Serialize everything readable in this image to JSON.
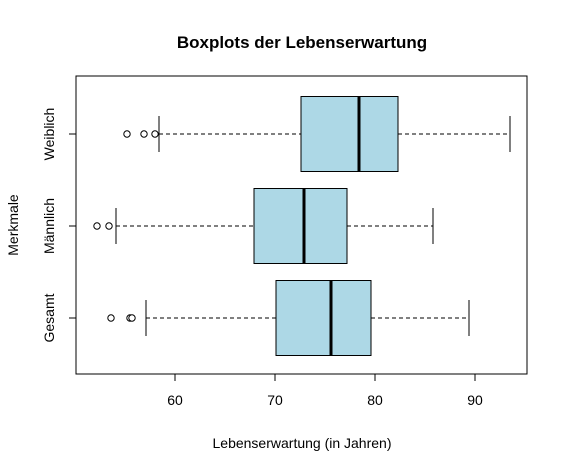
{
  "chart_data": {
    "type": "boxplot",
    "orientation": "horizontal",
    "title": "Boxplots der Lebenserwartung",
    "xlabel": "Lebenserwartung (in Jahren)",
    "ylabel": "Merkmale",
    "xlim": [
      50,
      95
    ],
    "xticks": [
      60,
      70,
      80,
      90
    ],
    "box_color": "#add8e6",
    "grid": false,
    "groups": [
      {
        "label": "Gesamt",
        "whisker_low": 57.1,
        "q1": 70.1,
        "median": 75.6,
        "q3": 79.6,
        "whisker_high": 89.4,
        "outliers": [
          53.6,
          55.5,
          55.7
        ]
      },
      {
        "label": "Männlich",
        "whisker_low": 54.1,
        "q1": 67.9,
        "median": 72.9,
        "q3": 77.2,
        "whisker_high": 85.8,
        "outliers": [
          52.2,
          53.4
        ]
      },
      {
        "label": "Weiblich",
        "whisker_low": 58.4,
        "q1": 72.6,
        "median": 78.4,
        "q3": 82.3,
        "whisker_high": 93.5,
        "outliers": [
          55.2,
          56.9,
          58.0
        ]
      }
    ]
  }
}
